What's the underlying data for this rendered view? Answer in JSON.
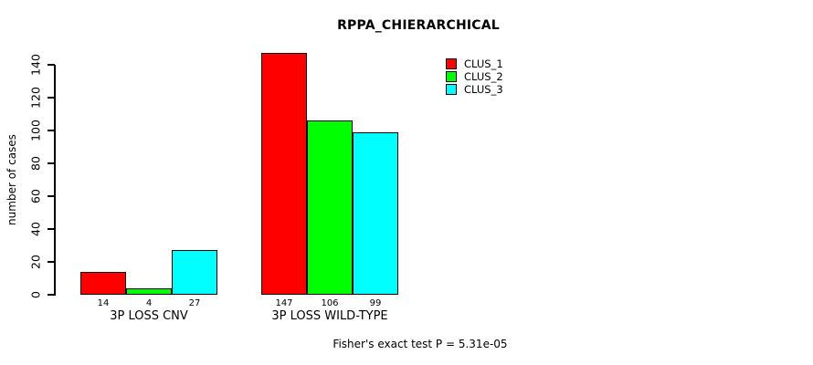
{
  "chart_data": {
    "type": "bar",
    "title": "RPPA_CHIERARCHICAL",
    "ylabel": "number of cases",
    "ylim": [
      0,
      140
    ],
    "yticks": [
      0,
      20,
      40,
      60,
      80,
      100,
      120,
      140
    ],
    "grid": false,
    "legend_position": "top-right",
    "background": "#ffffff",
    "axis_color": "#000000",
    "categories": [
      "3P LOSS CNV",
      "3P LOSS WILD-TYPE"
    ],
    "series": [
      {
        "name": "CLUS_1",
        "color": "#ff0000",
        "values": [
          14,
          147
        ]
      },
      {
        "name": "CLUS_2",
        "color": "#00ff00",
        "values": [
          4,
          106
        ]
      },
      {
        "name": "CLUS_3",
        "color": "#00ffff",
        "values": [
          27,
          99
        ]
      }
    ],
    "bar_value_labels": [
      [
        "14",
        "4",
        "27"
      ],
      [
        "147",
        "106",
        "99"
      ]
    ],
    "legend_entries": [
      "CLUS_1",
      "CLUS_2",
      "CLUS_3"
    ],
    "annotation": "Fisher's exact test P = 5.31e-05"
  }
}
